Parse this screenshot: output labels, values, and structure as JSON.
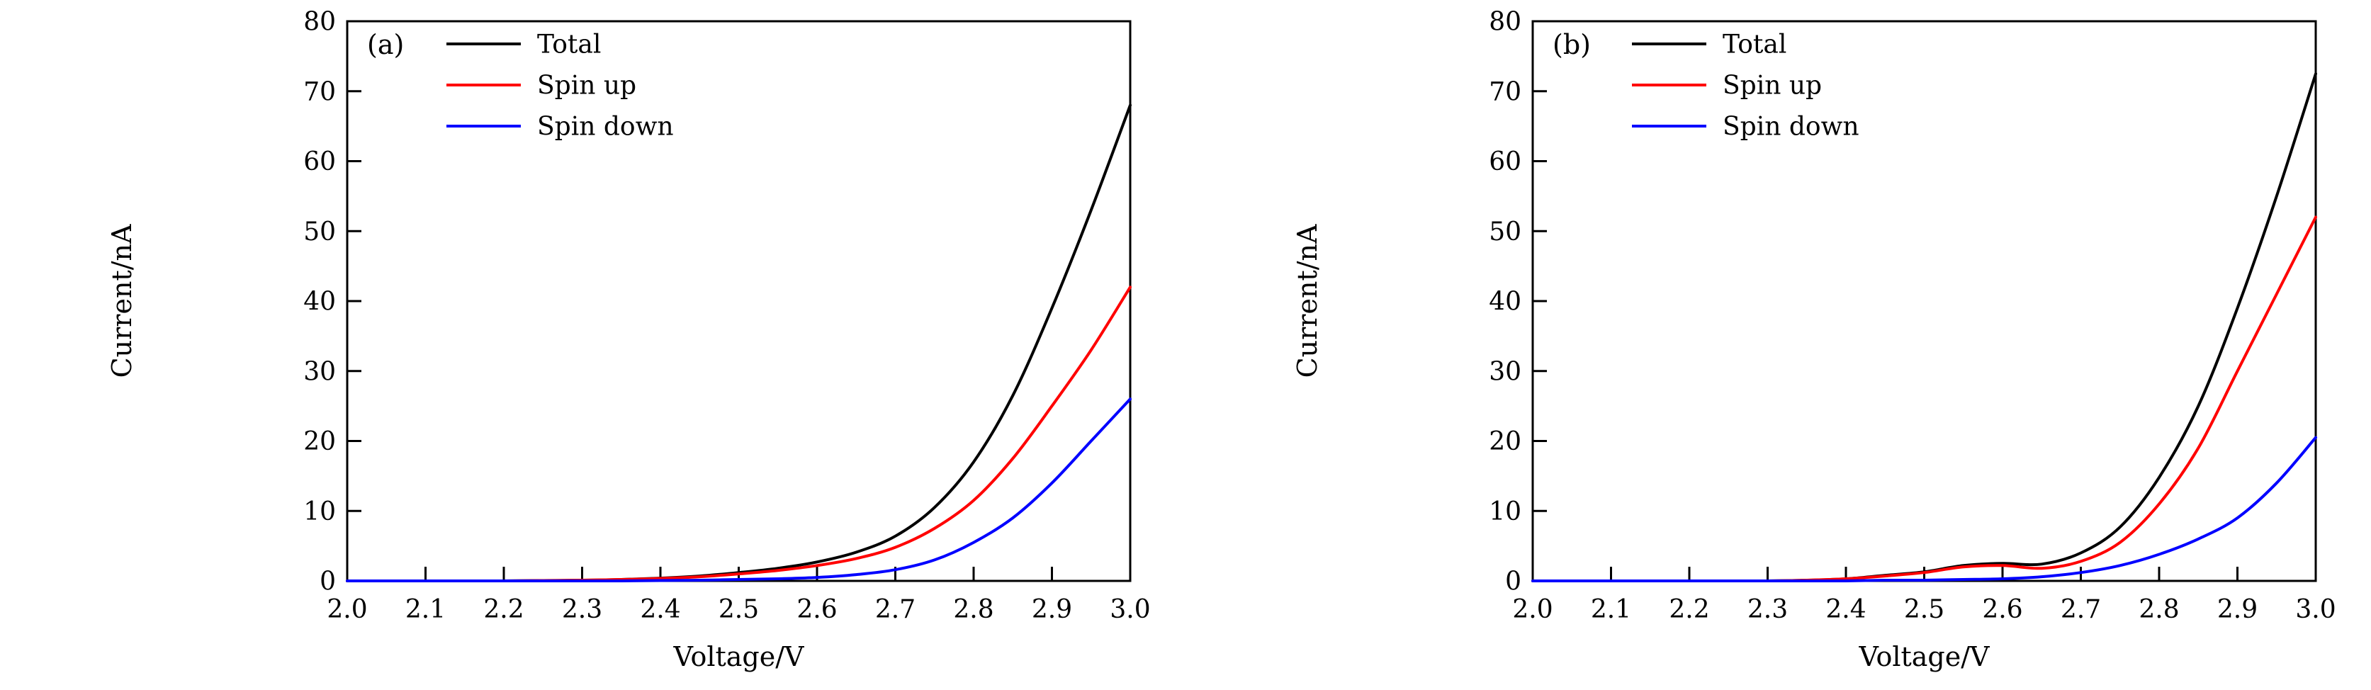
{
  "figure": {
    "background": "#ffffff",
    "axis_color": "#000000"
  },
  "chart_data": [
    {
      "type": "line",
      "panel_label": "(a)",
      "title": "",
      "xlabel": "Voltage/V",
      "ylabel": "Current/nA",
      "xlim": [
        2.0,
        3.0
      ],
      "ylim": [
        0,
        80
      ],
      "xticks": [
        2.0,
        2.1,
        2.2,
        2.3,
        2.4,
        2.5,
        2.6,
        2.7,
        2.8,
        2.9,
        3.0
      ],
      "xtick_labels": [
        "2.0",
        "2.1",
        "2.2",
        "2.3",
        "2.4",
        "2.5",
        "2.6",
        "2.7",
        "2.8",
        "2.9",
        "3.0"
      ],
      "yticks": [
        0,
        10,
        20,
        30,
        40,
        50,
        60,
        70,
        80
      ],
      "ytick_labels": [
        "0",
        "10",
        "20",
        "30",
        "40",
        "50",
        "60",
        "70",
        "80"
      ],
      "grid": false,
      "legend_position": "top-left",
      "x": [
        2.0,
        2.05,
        2.1,
        2.15,
        2.2,
        2.25,
        2.3,
        2.35,
        2.4,
        2.45,
        2.5,
        2.55,
        2.6,
        2.65,
        2.7,
        2.75,
        2.8,
        2.85,
        2.9,
        2.95,
        3.0
      ],
      "series": [
        {
          "name": "Total",
          "color": "#000000",
          "values": [
            0,
            0,
            0,
            0,
            0,
            0.05,
            0.1,
            0.2,
            0.4,
            0.7,
            1.2,
            1.8,
            2.7,
            4.1,
            6.4,
            10.5,
            17.0,
            26.5,
            39.0,
            53.0,
            68.0
          ]
        },
        {
          "name": "Spin up",
          "color": "#ff0000",
          "values": [
            0,
            0,
            0,
            0,
            0,
            0.05,
            0.1,
            0.2,
            0.35,
            0.6,
            1.0,
            1.5,
            2.2,
            3.2,
            4.8,
            7.5,
            11.5,
            17.5,
            25.0,
            33.0,
            42.0
          ]
        },
        {
          "name": "Spin down",
          "color": "#0000ff",
          "values": [
            0,
            0,
            0,
            0,
            0,
            0,
            0,
            0,
            0.05,
            0.1,
            0.2,
            0.3,
            0.5,
            0.9,
            1.6,
            3.0,
            5.5,
            9.0,
            14.0,
            20.0,
            26.0
          ]
        }
      ]
    },
    {
      "type": "line",
      "panel_label": "(b)",
      "title": "",
      "xlabel": "Voltage/V",
      "ylabel": "Current/nA",
      "xlim": [
        2.0,
        3.0
      ],
      "ylim": [
        0,
        80
      ],
      "xticks": [
        2.0,
        2.1,
        2.2,
        2.3,
        2.4,
        2.5,
        2.6,
        2.7,
        2.8,
        2.9,
        3.0
      ],
      "xtick_labels": [
        "2.0",
        "2.1",
        "2.2",
        "2.3",
        "2.4",
        "2.5",
        "2.6",
        "2.7",
        "2.8",
        "2.9",
        "3.0"
      ],
      "yticks": [
        0,
        10,
        20,
        30,
        40,
        50,
        60,
        70,
        80
      ],
      "ytick_labels": [
        "0",
        "10",
        "20",
        "30",
        "40",
        "50",
        "60",
        "70",
        "80"
      ],
      "grid": false,
      "legend_position": "top-left",
      "x": [
        2.0,
        2.05,
        2.1,
        2.15,
        2.2,
        2.25,
        2.3,
        2.35,
        2.4,
        2.45,
        2.5,
        2.55,
        2.6,
        2.65,
        2.7,
        2.75,
        2.8,
        2.85,
        2.9,
        2.95,
        3.0
      ],
      "series": [
        {
          "name": "Total",
          "color": "#000000",
          "values": [
            0,
            0,
            0,
            0,
            0,
            0,
            0,
            0.1,
            0.3,
            0.8,
            1.3,
            2.2,
            2.5,
            2.4,
            4.0,
            7.7,
            14.8,
            25.0,
            39.0,
            55.0,
            72.5
          ]
        },
        {
          "name": "Spin up",
          "color": "#ff0000",
          "values": [
            0,
            0,
            0,
            0,
            0,
            0,
            0,
            0.1,
            0.3,
            0.7,
            1.2,
            2.0,
            2.2,
            1.8,
            2.8,
            5.5,
            11.0,
            19.0,
            30.0,
            41.0,
            52.0
          ]
        },
        {
          "name": "Spin down",
          "color": "#0000ff",
          "values": [
            0,
            0,
            0,
            0,
            0,
            0,
            0,
            0,
            0,
            0.1,
            0.1,
            0.2,
            0.3,
            0.6,
            1.2,
            2.2,
            3.8,
            6.0,
            9.0,
            14.0,
            20.5
          ]
        }
      ]
    }
  ]
}
